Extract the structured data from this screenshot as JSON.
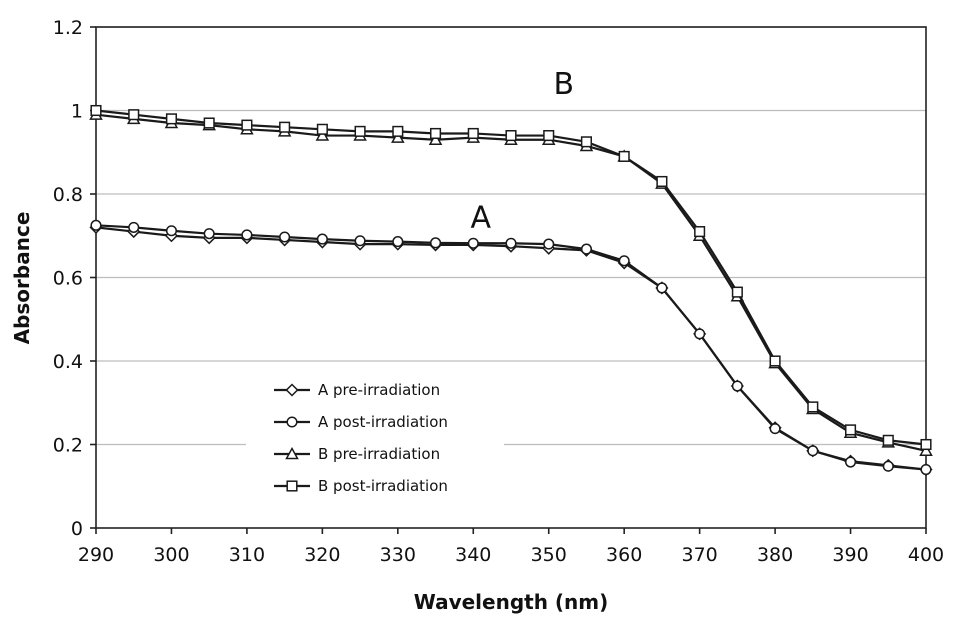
{
  "chart_data": {
    "type": "line",
    "title": "",
    "xlabel": "Wavelength (nm)",
    "ylabel": "Absorbance",
    "xlim": [
      290,
      400
    ],
    "ylim": [
      0,
      1.2
    ],
    "x_ticks": [
      "290",
      "300",
      "310",
      "320",
      "330",
      "340",
      "350",
      "360",
      "370",
      "380",
      "390",
      "400"
    ],
    "y_ticks": [
      "0",
      "0.2",
      "0.4",
      "0.6",
      "0.8",
      "1",
      "1.2"
    ],
    "grid": "horizontal",
    "legend_position": "lower-left",
    "x": [
      290,
      295,
      300,
      305,
      310,
      315,
      320,
      325,
      330,
      335,
      340,
      345,
      350,
      355,
      360,
      365,
      370,
      375,
      380,
      385,
      390,
      395,
      400
    ],
    "series": [
      {
        "name": "A  pre-irradiation",
        "marker": "diamond",
        "values": [
          0.72,
          0.71,
          0.7,
          0.695,
          0.695,
          0.69,
          0.685,
          0.68,
          0.68,
          0.678,
          0.678,
          0.675,
          0.67,
          0.665,
          0.635,
          0.575,
          0.465,
          0.34,
          0.24,
          0.185,
          0.16,
          0.15,
          0.14
        ]
      },
      {
        "name": "A  post-irradiation",
        "marker": "circle",
        "values": [
          0.725,
          0.72,
          0.712,
          0.705,
          0.702,
          0.697,
          0.692,
          0.688,
          0.686,
          0.683,
          0.682,
          0.682,
          0.68,
          0.668,
          0.64,
          0.575,
          0.465,
          0.34,
          0.238,
          0.185,
          0.158,
          0.148,
          0.14
        ]
      },
      {
        "name": "B  pre-irradiation",
        "marker": "triangle",
        "values": [
          0.99,
          0.98,
          0.97,
          0.965,
          0.955,
          0.95,
          0.94,
          0.94,
          0.935,
          0.93,
          0.935,
          0.93,
          0.93,
          0.915,
          0.89,
          0.825,
          0.7,
          0.555,
          0.395,
          0.285,
          0.228,
          0.205,
          0.185
        ]
      },
      {
        "name": "B  post-irradiation",
        "marker": "square",
        "values": [
          1.0,
          0.99,
          0.98,
          0.97,
          0.965,
          0.96,
          0.955,
          0.95,
          0.95,
          0.945,
          0.945,
          0.94,
          0.94,
          0.925,
          0.89,
          0.83,
          0.71,
          0.565,
          0.4,
          0.29,
          0.235,
          0.21,
          0.2
        ]
      }
    ],
    "annotations": [
      {
        "text": "B",
        "x": 352,
        "y": 1.04
      },
      {
        "text": "A",
        "x": 341,
        "y": 0.72
      }
    ]
  }
}
